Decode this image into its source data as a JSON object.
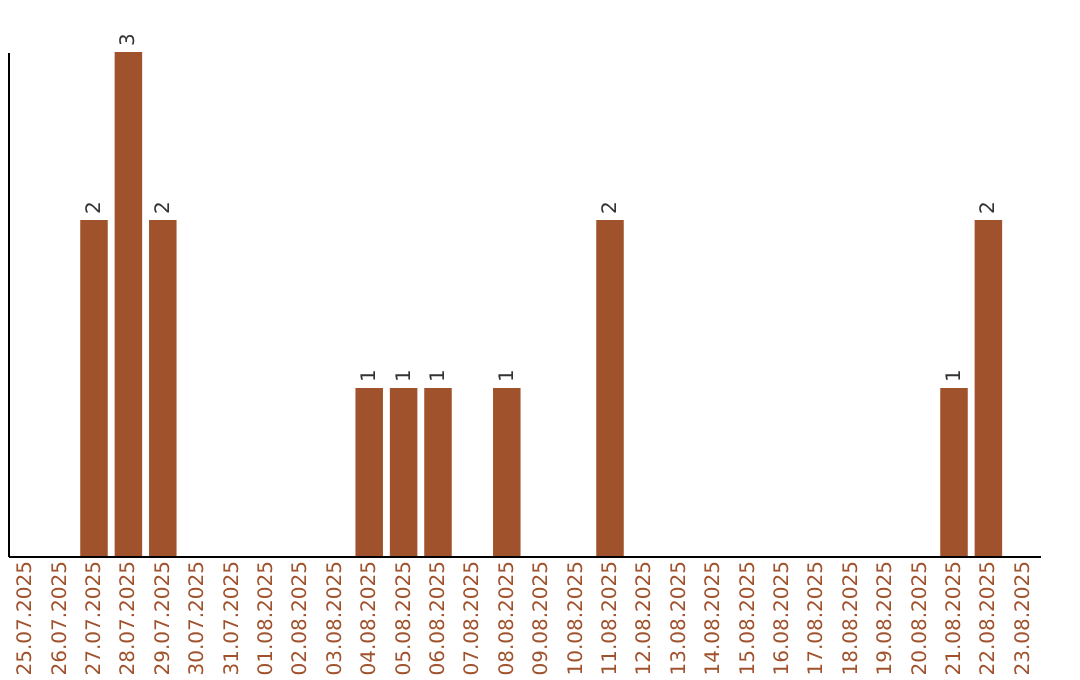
{
  "chart_data": {
    "type": "bar",
    "categories": [
      "25.07.2025",
      "26.07.2025",
      "27.07.2025",
      "28.07.2025",
      "29.07.2025",
      "30.07.2025",
      "31.07.2025",
      "01.08.2025",
      "02.08.2025",
      "03.08.2025",
      "04.08.2025",
      "05.08.2025",
      "06.08.2025",
      "07.08.2025",
      "08.08.2025",
      "09.08.2025",
      "10.08.2025",
      "11.08.2025",
      "12.08.2025",
      "13.08.2025",
      "14.08.2025",
      "15.08.2025",
      "16.08.2025",
      "17.08.2025",
      "18.08.2025",
      "19.08.2025",
      "20.08.2025",
      "21.08.2025",
      "22.08.2025",
      "23.08.2025"
    ],
    "values": [
      0,
      0,
      2,
      3,
      2,
      0,
      0,
      0,
      0,
      0,
      1,
      1,
      1,
      0,
      1,
      0,
      0,
      2,
      0,
      0,
      0,
      0,
      0,
      0,
      0,
      0,
      0,
      1,
      2,
      0
    ],
    "value_labels": [
      null,
      null,
      "2",
      "3",
      "2",
      null,
      null,
      null,
      null,
      null,
      "1",
      "1",
      "1",
      null,
      "1",
      null,
      null,
      "2",
      null,
      null,
      null,
      null,
      null,
      null,
      null,
      null,
      null,
      "1",
      "2",
      null
    ],
    "color": "#a0522d",
    "ylim": [
      0,
      3
    ],
    "tick_labels": "x",
    "grid": false
  }
}
